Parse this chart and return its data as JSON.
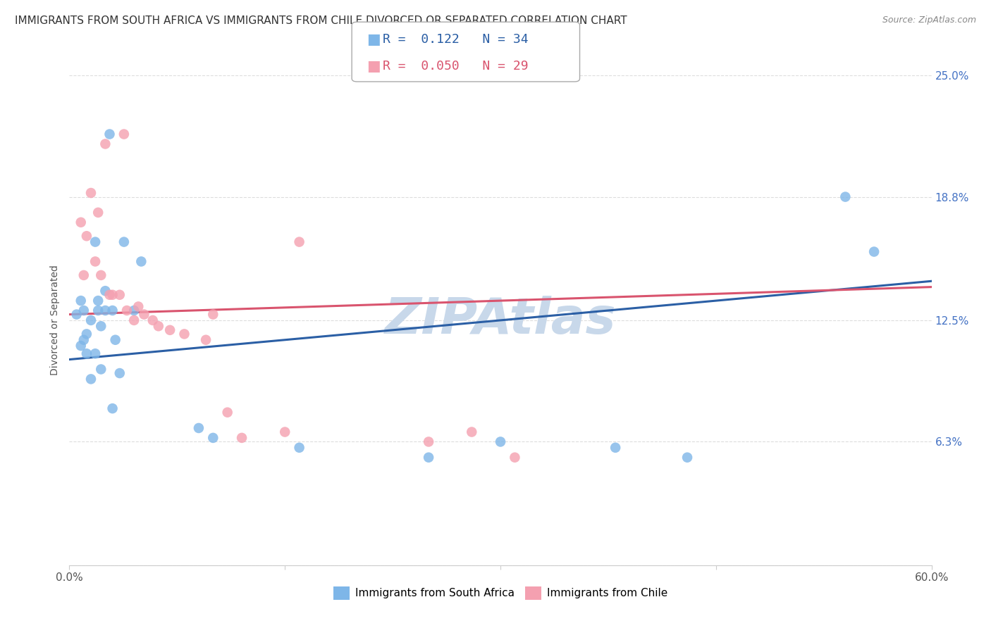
{
  "title": "IMMIGRANTS FROM SOUTH AFRICA VS IMMIGRANTS FROM CHILE DIVORCED OR SEPARATED CORRELATION CHART",
  "source": "Source: ZipAtlas.com",
  "ylabel": "Divorced or Separated",
  "xlabel": "",
  "xlim": [
    0.0,
    0.6
  ],
  "ylim": [
    0.0,
    0.25
  ],
  "yticks": [
    0.0,
    0.063,
    0.125,
    0.188,
    0.25
  ],
  "ytick_labels": [
    "",
    "6.3%",
    "12.5%",
    "18.8%",
    "25.0%"
  ],
  "xticks": [
    0.0,
    0.15,
    0.3,
    0.45,
    0.6
  ],
  "xtick_labels": [
    "0.0%",
    "",
    "",
    "",
    "60.0%"
  ],
  "r_blue": 0.122,
  "n_blue": 34,
  "r_pink": 0.05,
  "n_pink": 29,
  "blue_color": "#7EB6E8",
  "pink_color": "#F4A0B0",
  "blue_line_color": "#2B5FA5",
  "pink_line_color": "#D9546E",
  "watermark": "ZIPAtlas",
  "watermark_color": "#C8D8EA",
  "blue_points_x": [
    0.005,
    0.008,
    0.008,
    0.01,
    0.01,
    0.012,
    0.012,
    0.015,
    0.015,
    0.018,
    0.018,
    0.02,
    0.02,
    0.022,
    0.022,
    0.025,
    0.025,
    0.028,
    0.03,
    0.03,
    0.032,
    0.035,
    0.038,
    0.045,
    0.05,
    0.09,
    0.1,
    0.16,
    0.25,
    0.3,
    0.38,
    0.43,
    0.54,
    0.56
  ],
  "blue_points_y": [
    0.128,
    0.112,
    0.135,
    0.115,
    0.13,
    0.118,
    0.108,
    0.125,
    0.095,
    0.165,
    0.108,
    0.135,
    0.13,
    0.122,
    0.1,
    0.14,
    0.13,
    0.22,
    0.08,
    0.13,
    0.115,
    0.098,
    0.165,
    0.13,
    0.155,
    0.07,
    0.065,
    0.06,
    0.055,
    0.063,
    0.06,
    0.055,
    0.188,
    0.16
  ],
  "pink_points_x": [
    0.008,
    0.01,
    0.012,
    0.015,
    0.018,
    0.02,
    0.022,
    0.025,
    0.028,
    0.03,
    0.035,
    0.038,
    0.04,
    0.045,
    0.048,
    0.052,
    0.058,
    0.062,
    0.07,
    0.08,
    0.095,
    0.1,
    0.11,
    0.12,
    0.15,
    0.16,
    0.25,
    0.28,
    0.31
  ],
  "pink_points_y": [
    0.175,
    0.148,
    0.168,
    0.19,
    0.155,
    0.18,
    0.148,
    0.215,
    0.138,
    0.138,
    0.138,
    0.22,
    0.13,
    0.125,
    0.132,
    0.128,
    0.125,
    0.122,
    0.12,
    0.118,
    0.115,
    0.128,
    0.078,
    0.065,
    0.068,
    0.165,
    0.063,
    0.068,
    0.055
  ],
  "background_color": "#FFFFFF",
  "grid_color": "#DDDDDD",
  "title_fontsize": 11,
  "axis_fontsize": 10,
  "tick_fontsize": 11,
  "legend_fontsize": 13,
  "watermark_fontsize": 52,
  "marker_size": 110
}
